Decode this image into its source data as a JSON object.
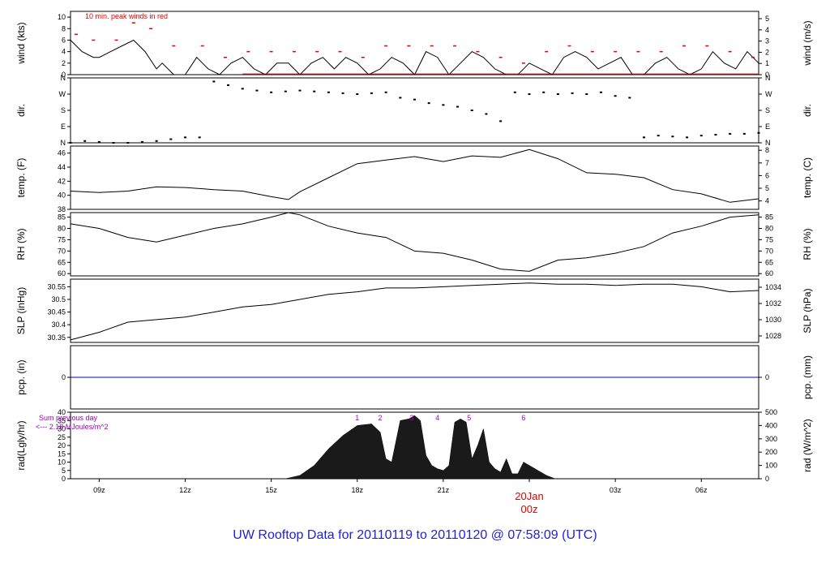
{
  "caption": "UW Rooftop Data for 20110119  to  20110120 @ 07:58:09  (UTC)",
  "colors": {
    "axis": "#000000",
    "peak": "#e00000",
    "pcp": "#0000c0",
    "sum": "#a000c0",
    "caption": "#1f1fd6",
    "date": "#e00000"
  },
  "chart_data": [
    {
      "type": "line",
      "id": "wind",
      "ylabel_left": "wind (kts)",
      "ylabel_right": "wind (m/s)",
      "annotation": "10 min. peak winds in red",
      "yticks_left": [
        0,
        2,
        4,
        6,
        8,
        10
      ],
      "yticks_right": [
        0,
        1,
        2,
        3,
        4,
        5
      ],
      "ylim": [
        0,
        11
      ],
      "series": [
        {
          "x": [
            8.0,
            8.4,
            8.8,
            9.0,
            9.4,
            9.8,
            10.2,
            10.6,
            11.0,
            11.2,
            11.6,
            12.0,
            12.4,
            12.8,
            13.2,
            13.6,
            14.0,
            14.4,
            14.8,
            15.2,
            15.6,
            16.0,
            16.4,
            16.8,
            17.2,
            17.6,
            18.0,
            18.4,
            18.8,
            19.2,
            19.6,
            20.0,
            20.4,
            20.8,
            21.2,
            21.6,
            22.0,
            22.4,
            22.8,
            23.2,
            23.6,
            24.0,
            24.4,
            24.8,
            25.2,
            25.6,
            26.0,
            26.4,
            26.8,
            27.2,
            27.6,
            28.0,
            28.4,
            28.8,
            29.2,
            29.6,
            30.0,
            30.4,
            30.8,
            31.2,
            31.6,
            32.0
          ],
          "values": [
            6,
            4,
            3,
            3,
            4,
            5,
            6,
            4,
            1,
            2,
            0,
            0,
            3,
            1,
            0,
            2,
            3,
            1,
            0,
            2,
            2,
            0,
            2,
            3,
            1,
            3,
            2,
            0,
            1,
            3,
            2,
            0,
            4,
            3,
            0,
            2,
            4,
            3,
            1,
            0,
            0,
            2,
            1,
            0,
            3,
            4,
            3,
            1,
            2,
            3,
            0,
            0,
            2,
            3,
            1,
            0,
            1,
            4,
            2,
            1,
            4,
            2
          ]
        },
        {
          "x": [
            8.2,
            8.8,
            9.6,
            10.2,
            10.8,
            11.6,
            12.6,
            13.4,
            14.2,
            15.0,
            15.8,
            16.6,
            17.4,
            18.2,
            19.0,
            19.8,
            20.6,
            21.4,
            22.2,
            23.0,
            23.8,
            24.6,
            25.4,
            26.2,
            27.0,
            27.8,
            28.6,
            29.4,
            30.2,
            31.0,
            31.8
          ],
          "values": [
            7,
            6,
            6,
            9,
            8,
            5,
            5,
            3,
            4,
            4,
            4,
            4,
            4,
            3,
            5,
            5,
            5,
            5,
            4,
            3,
            2,
            4,
            5,
            4,
            4,
            4,
            4,
            5,
            5,
            4,
            3
          ]
        }
      ]
    },
    {
      "type": "scatter",
      "id": "dir",
      "ylabel_left": "dir.",
      "ylabel_right": "dir.",
      "yticks_left": [
        "N",
        "E",
        "S",
        "W",
        "N"
      ],
      "yticks_right": [
        "N",
        "E",
        "S",
        "W",
        "N"
      ],
      "ylim": [
        0,
        360
      ],
      "x": [
        8.0,
        8.5,
        9.0,
        9.5,
        10.0,
        10.5,
        11.0,
        11.5,
        12.0,
        12.5,
        13.0,
        13.5,
        14.0,
        14.5,
        15.0,
        15.5,
        16.0,
        16.5,
        17.0,
        17.5,
        18.0,
        18.5,
        19.0,
        19.5,
        20.0,
        20.5,
        21.0,
        21.5,
        22.0,
        22.5,
        23.0,
        23.5,
        24.0,
        24.5,
        25.0,
        25.5,
        26.0,
        26.5,
        27.0,
        27.5,
        28.0,
        28.5,
        29.0,
        29.5,
        30.0,
        30.5,
        31.0,
        31.5,
        32.0
      ],
      "values": [
        0,
        10,
        5,
        0,
        0,
        5,
        10,
        20,
        30,
        30,
        340,
        320,
        300,
        290,
        280,
        285,
        290,
        285,
        280,
        275,
        270,
        275,
        280,
        250,
        240,
        220,
        210,
        200,
        180,
        160,
        120,
        280,
        270,
        280,
        270,
        275,
        270,
        280,
        260,
        250,
        30,
        40,
        35,
        30,
        40,
        45,
        50,
        50,
        55
      ]
    },
    {
      "type": "line",
      "id": "temp",
      "ylabel_left": "temp. (F)",
      "ylabel_right": "temp. (C)",
      "yticks_left": [
        38,
        40,
        42,
        44,
        46
      ],
      "yticks_right": [
        4,
        5,
        6,
        7,
        8
      ],
      "ylim": [
        38,
        47
      ],
      "x": [
        8,
        9,
        10,
        11,
        12,
        13,
        14,
        15,
        15.6,
        16,
        17,
        18,
        19,
        20,
        21,
        22,
        23,
        24,
        25,
        26,
        27,
        28,
        29,
        30,
        31,
        32
      ],
      "values": [
        40.6,
        40.4,
        40.6,
        41.2,
        41.1,
        40.8,
        40.6,
        39.8,
        39.4,
        40.5,
        42.5,
        44.5,
        45,
        45.5,
        44.8,
        45.6,
        45.4,
        46.5,
        45.2,
        43.2,
        43,
        42.5,
        40.8,
        40.2,
        39,
        39.5
      ]
    },
    {
      "type": "line",
      "id": "rh",
      "ylabel_left": "RH (%)",
      "ylabel_right": "RH (%)",
      "yticks_left": [
        60,
        65,
        70,
        75,
        80,
        85
      ],
      "yticks_right": [
        60,
        65,
        70,
        75,
        80,
        85
      ],
      "ylim": [
        59,
        87
      ],
      "x": [
        8,
        9,
        10,
        11,
        12,
        13,
        14,
        15,
        15.6,
        16,
        17,
        18,
        19,
        20,
        21,
        22,
        23,
        24,
        25,
        26,
        27,
        28,
        29,
        30,
        31,
        32
      ],
      "values": [
        82,
        80,
        76,
        74,
        77,
        80,
        82,
        85,
        87,
        86,
        81,
        78,
        76,
        70,
        69,
        66,
        62,
        61,
        66,
        67,
        69,
        72,
        78,
        81,
        85,
        86
      ]
    },
    {
      "type": "line",
      "id": "slp",
      "ylabel_left": "SLP (inHg)",
      "ylabel_right": "SLP (hPa)",
      "yticks_left": [
        30.35,
        30.4,
        30.45,
        30.5,
        30.55
      ],
      "yticks_right": [
        1028,
        1030,
        1032,
        1034
      ],
      "ylim": [
        30.33,
        30.58
      ],
      "x": [
        8,
        9,
        10,
        11,
        12,
        13,
        14,
        15,
        16,
        17,
        18,
        19,
        20,
        21,
        22,
        23,
        24,
        25,
        26,
        27,
        28,
        29,
        30,
        31,
        32
      ],
      "values": [
        30.34,
        30.37,
        30.41,
        30.42,
        30.43,
        30.45,
        30.47,
        30.48,
        30.5,
        30.52,
        30.53,
        30.545,
        30.545,
        30.55,
        30.555,
        30.56,
        30.565,
        30.56,
        30.56,
        30.555,
        30.56,
        30.56,
        30.55,
        30.53,
        30.535
      ]
    },
    {
      "type": "line",
      "id": "pcp",
      "ylabel_left": "pcp. (in)",
      "ylabel_right": "pcp. (mm)",
      "yticks_left": [
        0
      ],
      "yticks_right": [
        0
      ],
      "ylim": [
        -1,
        1
      ],
      "x": [
        8,
        32
      ],
      "values": [
        0,
        0
      ]
    },
    {
      "type": "area",
      "id": "rad",
      "ylabel_left": "rad(Lgly/hr)",
      "ylabel_right": "rad (W/m^2)",
      "annotation_line1": "Sum previous day",
      "annotation_line2": "<--- 2.18 MJoules/m^2",
      "top_marks": [
        "1",
        "2",
        "3",
        "4",
        "5",
        "6"
      ],
      "yticks_left": [
        0,
        5,
        10,
        15,
        20,
        25,
        30,
        35,
        40
      ],
      "yticks_right": [
        0,
        100,
        200,
        300,
        400,
        500
      ],
      "ylim": [
        0,
        40
      ],
      "x": [
        15.5,
        16,
        16.5,
        17,
        17.5,
        18,
        18.5,
        18.8,
        19,
        19.2,
        19.5,
        19.8,
        20,
        20.2,
        20.4,
        20.6,
        20.8,
        21,
        21.2,
        21.4,
        21.6,
        21.8,
        22,
        22.2,
        22.4,
        22.6,
        22.8,
        23,
        23.2,
        23.4,
        23.6,
        23.8,
        24,
        24.3,
        24.6,
        24.9,
        25.5
      ],
      "values": [
        0,
        2,
        8,
        18,
        26,
        32,
        33,
        28,
        12,
        10,
        35,
        36,
        38,
        35,
        14,
        8,
        6,
        5,
        8,
        34,
        36,
        34,
        12,
        20,
        30,
        10,
        6,
        4,
        12,
        3,
        3,
        10,
        8,
        5,
        2,
        0,
        0
      ]
    }
  ],
  "xaxis": {
    "ticks": [
      "09z",
      "12z",
      "15z",
      "18z",
      "21z",
      "00z",
      "03z",
      "06z"
    ],
    "tick_hours": [
      9,
      12,
      15,
      18,
      21,
      24,
      27,
      30
    ],
    "xlim": [
      8.0,
      32.0
    ],
    "date_label": "20Jan",
    "date_hour_label": "00z"
  }
}
